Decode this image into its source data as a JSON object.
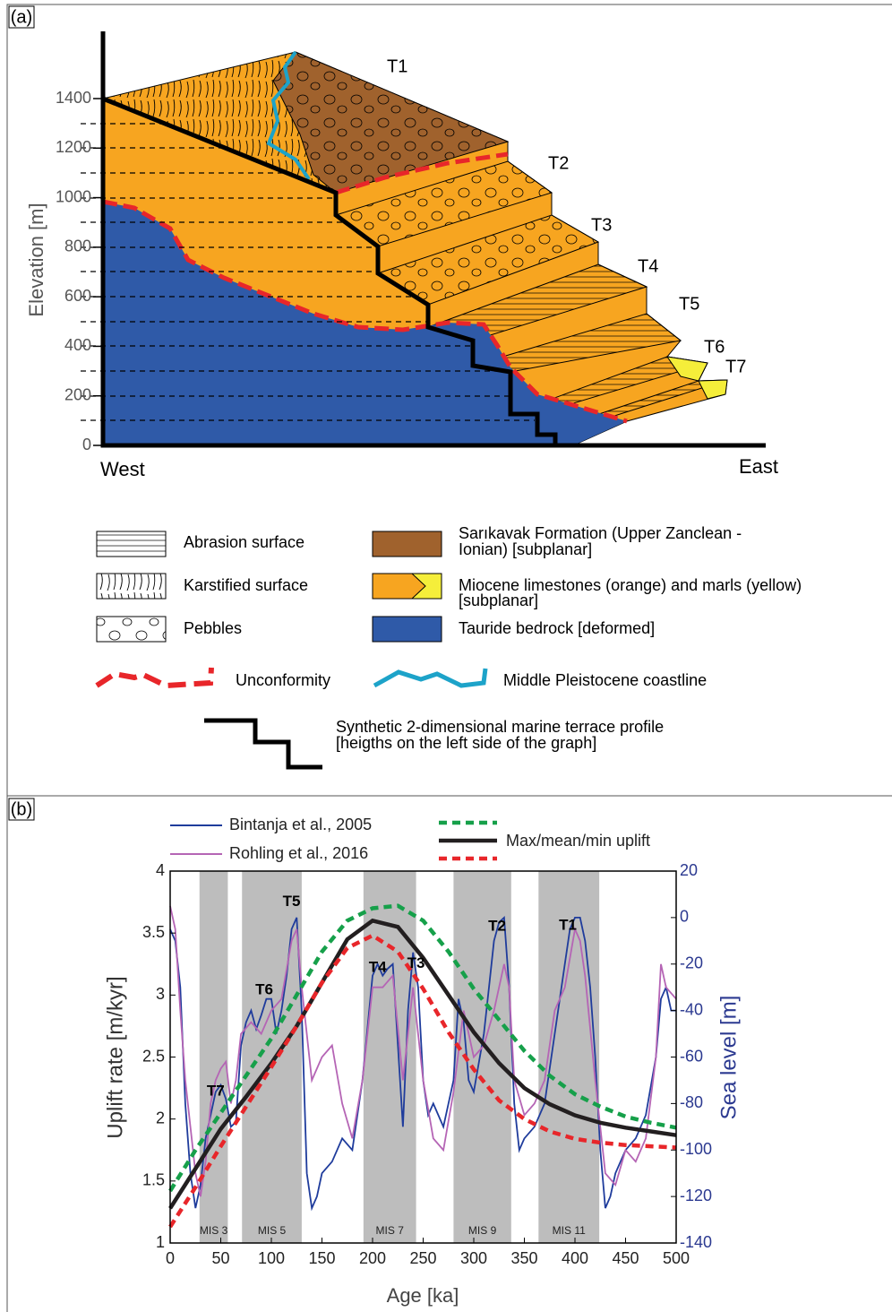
{
  "panel_a": {
    "label": "(a)",
    "ylabel": "Elevation [m]",
    "ylim": [
      0,
      1400
    ],
    "yticks": [
      0,
      200,
      400,
      600,
      800,
      1000,
      1200,
      1400
    ],
    "west": "West",
    "east": "East",
    "terraces": [
      "T1",
      "T2",
      "T3",
      "T4",
      "T5",
      "T6",
      "T7"
    ],
    "legend": {
      "abrasion": "Abrasion surface",
      "karst": "Karstified surface",
      "pebbles": "Pebbles",
      "sarikavak": [
        "Sarıkavak Formation (Upper Zanclean -",
        "Ionian) [subplanar]"
      ],
      "miocene": [
        "Miocene limestones (orange) and marls (yellow)",
        "[subplanar]"
      ],
      "tauride": "Tauride bedrock [deformed]",
      "unconformity": "Unconformity",
      "coastline": "Middle Pleistocene coastline",
      "profile": [
        "Synthetic 2-dimensional marine terrace profile",
        "[heigths on the left side of the graph]"
      ]
    }
  },
  "chart_data": {
    "type": "line",
    "label": "(b)",
    "xlabel": "Age [ka]",
    "ylabel": "Uplift rate [m/kyr]",
    "y2label": "Sea level [m]",
    "xlim": [
      0,
      500
    ],
    "xticks": [
      0,
      50,
      100,
      150,
      200,
      250,
      300,
      350,
      400,
      450,
      500
    ],
    "ylim": [
      1,
      4
    ],
    "yticks": [
      1,
      1.5,
      2,
      2.5,
      3,
      3.5,
      4
    ],
    "y2lim": [
      -140,
      20
    ],
    "y2ticks": [
      -140,
      -120,
      -100,
      -80,
      -60,
      -40,
      -20,
      0,
      20
    ],
    "uplift_legend": "Max/mean/min uplift",
    "annotations": [
      "T7",
      "T6",
      "T5",
      "T4",
      "T3",
      "T2",
      "T1"
    ],
    "bands": [
      {
        "label": "MIS 3",
        "start": 29,
        "end": 57
      },
      {
        "label": "MIS 5",
        "start": 71,
        "end": 130
      },
      {
        "label": "MIS 7",
        "start": 191,
        "end": 243
      },
      {
        "label": "MIS 9",
        "start": 280,
        "end": 337
      },
      {
        "label": "MIS 11",
        "start": 364,
        "end": 424
      }
    ],
    "series": [
      {
        "name": "Bintanja et al., 2005",
        "color": "#1f3c9c",
        "axis": "y2",
        "x": [
          0,
          5,
          10,
          15,
          20,
          25,
          30,
          35,
          40,
          45,
          50,
          55,
          60,
          65,
          70,
          75,
          80,
          85,
          90,
          95,
          100,
          105,
          110,
          115,
          120,
          125,
          130,
          135,
          140,
          145,
          150,
          160,
          170,
          180,
          190,
          200,
          205,
          210,
          215,
          220,
          225,
          230,
          235,
          240,
          245,
          250,
          255,
          260,
          270,
          280,
          285,
          290,
          295,
          300,
          310,
          315,
          320,
          325,
          330,
          335,
          340,
          345,
          350,
          360,
          370,
          380,
          390,
          395,
          400,
          405,
          410,
          415,
          420,
          425,
          430,
          435,
          440,
          450,
          460,
          470,
          480,
          485,
          490,
          495,
          500
        ],
        "values": [
          -5,
          -10,
          -30,
          -80,
          -110,
          -125,
          -115,
          -95,
          -85,
          -75,
          -72,
          -78,
          -90,
          -88,
          -55,
          -45,
          -40,
          -48,
          -42,
          -35,
          -35,
          -50,
          -40,
          -25,
          -5,
          0,
          -40,
          -110,
          -125,
          -120,
          -110,
          -105,
          -95,
          -100,
          -70,
          -25,
          -20,
          -25,
          -22,
          -20,
          -55,
          -90,
          -40,
          -15,
          -30,
          -70,
          -85,
          -80,
          -90,
          -70,
          -35,
          -45,
          -70,
          -75,
          -50,
          -30,
          -10,
          -2,
          0,
          -30,
          -80,
          -100,
          -95,
          -90,
          -80,
          -50,
          -20,
          -5,
          0,
          0,
          -10,
          -30,
          -60,
          -100,
          -125,
          -120,
          -110,
          -100,
          -95,
          -85,
          -60,
          -35,
          -30,
          -40,
          -40
        ]
      },
      {
        "name": "Rohling et al., 2016",
        "color": "#b565b5",
        "axis": "y2",
        "x": [
          0,
          5,
          10,
          15,
          20,
          25,
          30,
          35,
          40,
          45,
          50,
          55,
          60,
          65,
          70,
          80,
          90,
          100,
          110,
          120,
          125,
          130,
          140,
          150,
          160,
          170,
          180,
          190,
          200,
          210,
          220,
          230,
          240,
          250,
          260,
          270,
          280,
          290,
          300,
          310,
          320,
          330,
          335,
          340,
          350,
          360,
          370,
          380,
          390,
          400,
          405,
          410,
          420,
          430,
          440,
          450,
          460,
          470,
          480,
          485,
          490,
          500
        ],
        "values": [
          5,
          -5,
          -40,
          -70,
          -90,
          -110,
          -120,
          -105,
          -80,
          -70,
          -65,
          -62,
          -80,
          -70,
          -50,
          -45,
          -50,
          -40,
          -35,
          -10,
          -5,
          -30,
          -70,
          -60,
          -55,
          -80,
          -95,
          -70,
          -30,
          -30,
          -25,
          -70,
          -30,
          -70,
          -95,
          -100,
          -75,
          -40,
          -60,
          -55,
          -40,
          -20,
          -30,
          -70,
          -85,
          -80,
          -70,
          -40,
          -30,
          -5,
          -10,
          -25,
          -70,
          -110,
          -115,
          -100,
          -105,
          -95,
          -60,
          -20,
          -30,
          -35
        ]
      },
      {
        "color": "#16a04a",
        "line_style": "dashed",
        "x": [
          0,
          25,
          50,
          75,
          100,
          125,
          150,
          175,
          200,
          225,
          250,
          275,
          300,
          325,
          350,
          375,
          400,
          425,
          450,
          475,
          500
        ],
        "values": [
          1.42,
          1.75,
          2.05,
          2.35,
          2.65,
          3.0,
          3.35,
          3.6,
          3.7,
          3.72,
          3.6,
          3.35,
          3.05,
          2.8,
          2.55,
          2.35,
          2.2,
          2.1,
          2.02,
          1.97,
          1.93
        ]
      },
      {
        "color": "#231f20",
        "line_style": "solid",
        "x": [
          0,
          25,
          50,
          75,
          100,
          125,
          150,
          175,
          200,
          225,
          250,
          275,
          300,
          325,
          350,
          375,
          400,
          425,
          450,
          475,
          500
        ],
        "values": [
          1.28,
          1.6,
          1.92,
          2.18,
          2.45,
          2.75,
          3.1,
          3.45,
          3.6,
          3.55,
          3.3,
          3.0,
          2.7,
          2.45,
          2.25,
          2.12,
          2.03,
          1.97,
          1.93,
          1.9,
          1.87
        ]
      },
      {
        "color": "#e8262a",
        "line_style": "dashed",
        "x": [
          0,
          25,
          50,
          75,
          100,
          125,
          150,
          175,
          200,
          225,
          250,
          275,
          300,
          325,
          350,
          375,
          400,
          425,
          450,
          475,
          500
        ],
        "values": [
          1.13,
          1.45,
          1.78,
          2.1,
          2.42,
          2.75,
          3.1,
          3.38,
          3.48,
          3.35,
          3.05,
          2.7,
          2.4,
          2.15,
          2.0,
          1.9,
          1.84,
          1.81,
          1.79,
          1.78,
          1.77
        ]
      }
    ]
  }
}
